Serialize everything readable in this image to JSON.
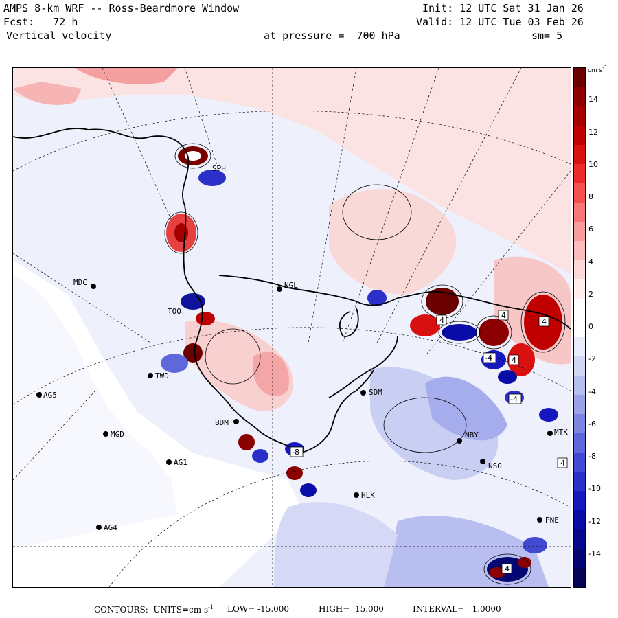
{
  "header": {
    "title": "AMPS 8-km WRF -- Ross-Beardmore Window",
    "fcst": "Fcst:   72 h",
    "field": "Vertical velocity",
    "init": "Init: 12 UTC Sat 31 Jan 26",
    "valid": "Valid: 12 UTC Tue 03 Feb 26",
    "pressure": "at pressure =  700 hPa",
    "smooth": "sm= 5"
  },
  "colorbar": {
    "unit": "cm s",
    "unit_exp": "-1",
    "ticks": [
      "14",
      "12",
      "10",
      "8",
      "6",
      "4",
      "2",
      "0",
      "-2",
      "-4",
      "-6",
      "-8",
      "-10",
      "-12",
      "-14"
    ],
    "colors": [
      "#6b0000",
      "#8b0000",
      "#a50000",
      "#c00000",
      "#d81010",
      "#ec2a2a",
      "#f45050",
      "#f87878",
      "#fa9c9c",
      "#fcbcbc",
      "#fdd8d8",
      "#feeeee",
      "#ffffff",
      "#ffffff",
      "#eaecfb",
      "#d2d6f6",
      "#b6bdf0",
      "#9aa2ea",
      "#7d86e2",
      "#5f68da",
      "#434ad2",
      "#2a30c8",
      "#1518bc",
      "#0a0ca8",
      "#06088e",
      "#040672",
      "#030458"
    ],
    "range": [
      -16,
      16
    ]
  },
  "footer": {
    "contours": "CONTOURS:  UNITS=cm s",
    "units_exp": "-1",
    "low": "LOW= -15.000",
    "high": "HIGH=  15.000",
    "interval": "INTERVAL=   1.0000"
  },
  "stations": [
    {
      "id": "MDC",
      "label": "MDC"
    },
    {
      "id": "NGL",
      "label": "NGL"
    },
    {
      "id": "TWD",
      "label": "TWD"
    },
    {
      "id": "AG5",
      "label": "AG5"
    },
    {
      "id": "MGD",
      "label": "MGD"
    },
    {
      "id": "AG1",
      "label": "AG1"
    },
    {
      "id": "AG4",
      "label": "AG4"
    },
    {
      "id": "SDM",
      "label": "SDM"
    },
    {
      "id": "NBY",
      "label": "NBY"
    },
    {
      "id": "NSO",
      "label": "NSO"
    },
    {
      "id": "MTK",
      "label": "MTK"
    },
    {
      "id": "PNE",
      "label": "PNE"
    },
    {
      "id": "HLK",
      "label": "HLK"
    },
    {
      "id": "BDM",
      "label": "BDM"
    },
    {
      "id": "SPH",
      "label": "SPH"
    },
    {
      "id": "TOO",
      "label": "TOO"
    }
  ],
  "extrema_labels": [
    "4",
    "4",
    "4",
    "4",
    "-4",
    "-8",
    "-4",
    "4",
    "4"
  ]
}
